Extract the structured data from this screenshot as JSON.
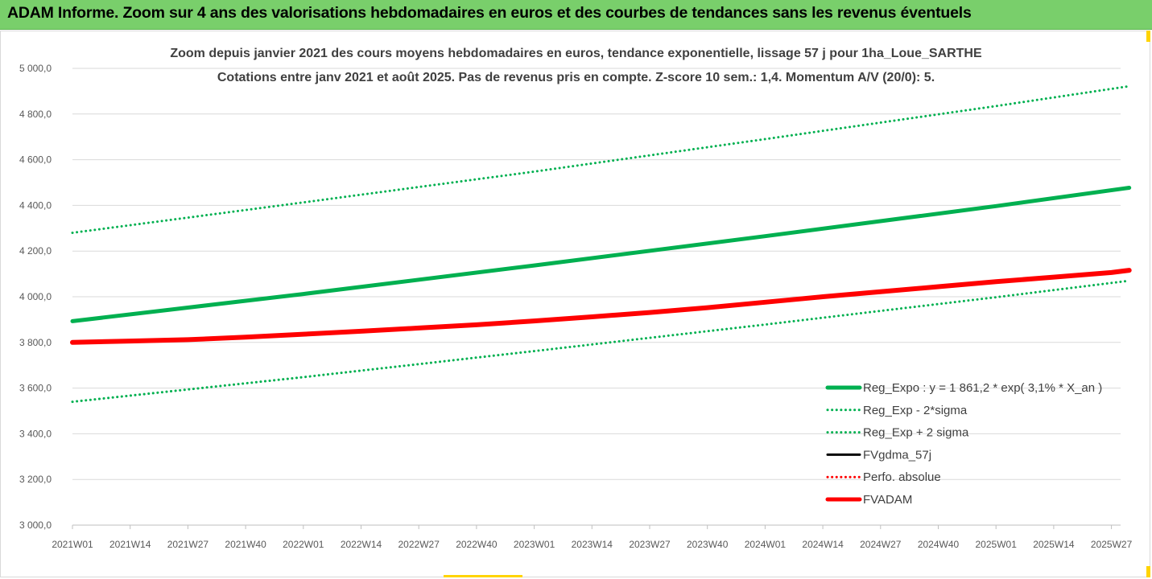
{
  "banner": {
    "title": "ADAM Informe. Zoom sur 4 ans des valorisations hebdomadaires en euros et des courbes de tendances sans les revenus éventuels"
  },
  "chart_data": {
    "type": "line",
    "title": "Zoom depuis janvier 2021 des cours moyens hebdomadaires en euros, tendance exponentielle, lissage 57 j pour 1ha_Loue_SARTHE",
    "subtitle": "Cotations entre janv 2021 et août 2025.  Pas de revenus pris en compte. Z-score 10 sem.: 1,4. Momentum A/V (20/0): 5.",
    "x_categories": [
      "2021W01",
      "2021W14",
      "2021W27",
      "2021W40",
      "2022W01",
      "2022W14",
      "2022W27",
      "2022W40",
      "2023W01",
      "2023W14",
      "2023W27",
      "2023W40",
      "2024W01",
      "2024W14",
      "2024W27",
      "2024W40",
      "2025W01",
      "2025W14",
      "2025W27"
    ],
    "x_end_week": "2025W31",
    "ylim": [
      3000,
      5000
    ],
    "yticks": [
      3000,
      3200,
      3400,
      3600,
      3800,
      4000,
      4200,
      4400,
      4600,
      4800,
      5000
    ],
    "ytick_labels": [
      "3 000,0",
      "3 200,0",
      "3 400,0",
      "3 600,0",
      "3 800,0",
      "4 000,0",
      "4 200,0",
      "4 400,0",
      "4 600,0",
      "4 800,0",
      "5 000,0"
    ],
    "grid": "horizontal",
    "legend_position": "right",
    "series": [
      {
        "name": "Reg_Expo : y = 1 861,2 * exp( 3,1% *  X_an )",
        "color": "#00b050",
        "style": "solid",
        "width": 5,
        "x": [
          "2021W01",
          "2022W01",
          "2023W01",
          "2024W01",
          "2025W01",
          "2025W31"
        ],
        "y": [
          3893,
          4012,
          4137,
          4265,
          4397,
          4477
        ]
      },
      {
        "name": "Reg_Exp - 2*sigma",
        "color": "#00b050",
        "style": "dotted",
        "width": 3,
        "x": [
          "2021W01",
          "2022W01",
          "2023W01",
          "2024W01",
          "2025W01",
          "2025W31"
        ],
        "y": [
          3540,
          3648,
          3762,
          3878,
          3998,
          4070
        ]
      },
      {
        "name": "Reg_Exp + 2 sigma",
        "color": "#00b050",
        "style": "dotted",
        "width": 3,
        "x": [
          "2021W01",
          "2022W01",
          "2023W01",
          "2024W01",
          "2025W01",
          "2025W31"
        ],
        "y": [
          4280,
          4413,
          4548,
          4690,
          4835,
          4922
        ]
      },
      {
        "name": "FVgdma_57j",
        "color": "#000000",
        "style": "solid",
        "width": 3,
        "x": [],
        "y": []
      },
      {
        "name": "Perfo. absolue",
        "color": "#ff0000",
        "style": "dotted",
        "width": 3,
        "x": [],
        "y": []
      },
      {
        "name": "FVADAM",
        "color": "#ff0000",
        "style": "solid",
        "width": 6,
        "x": [
          "2021W01",
          "2021W14",
          "2021W27",
          "2021W40",
          "2022W01",
          "2022W14",
          "2022W27",
          "2022W40",
          "2023W01",
          "2023W14",
          "2023W27",
          "2023W40",
          "2024W01",
          "2024W14",
          "2024W27",
          "2024W40",
          "2025W01",
          "2025W14",
          "2025W27",
          "2025W31"
        ],
        "y": [
          3800,
          3806,
          3812,
          3823,
          3836,
          3849,
          3863,
          3877,
          3894,
          3912,
          3931,
          3952,
          3976,
          4000,
          4022,
          4044,
          4066,
          4086,
          4106,
          4116
        ]
      }
    ]
  }
}
